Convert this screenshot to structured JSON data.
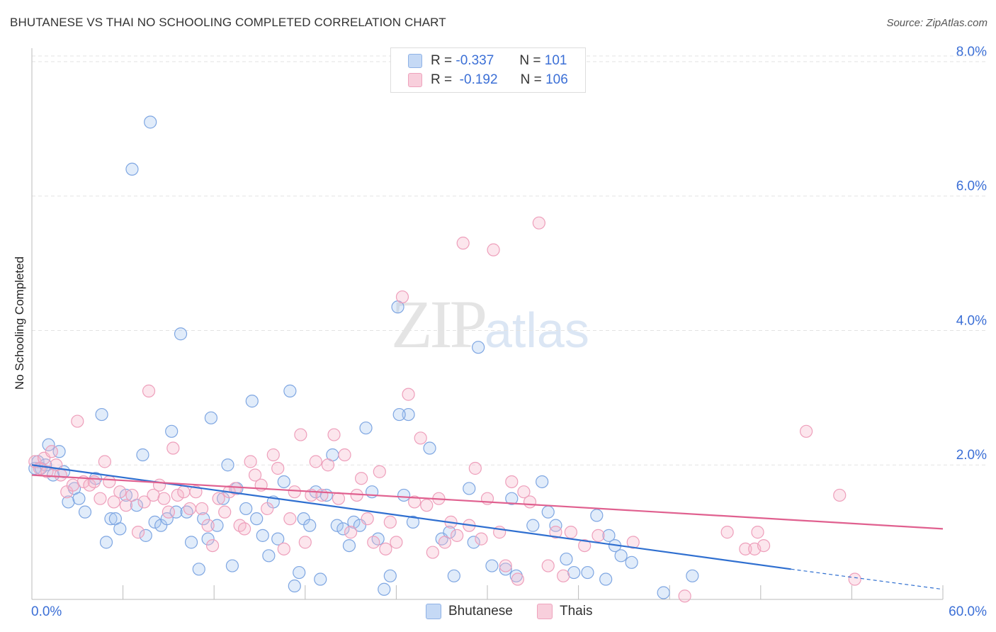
{
  "title": "BHUTANESE VS THAI NO SCHOOLING COMPLETED CORRELATION CHART",
  "source": "Source: ZipAtlas.com",
  "watermark": {
    "zip": "ZIP",
    "atlas": "atlas"
  },
  "legend": {
    "rows": [
      {
        "r_label": "R =",
        "r_value": "-0.337",
        "n_label": "N =",
        "n_value": "101",
        "color": "#aac8f0"
      },
      {
        "r_label": "R =",
        "r_value": "-0.192",
        "n_label": "N =",
        "n_value": "106",
        "color": "#f5b8cc"
      }
    ]
  },
  "bottom_legend": {
    "series1": "Bhutanese",
    "series2": "Thais"
  },
  "chart_data": {
    "type": "scatter",
    "title": "BHUTANESE VS THAI NO SCHOOLING COMPLETED CORRELATION CHART",
    "xlabel": "",
    "ylabel": "No Schooling Completed",
    "xlim": [
      0,
      60
    ],
    "ylim": [
      0,
      8.2
    ],
    "x_tick_labels": [
      "0.0%",
      "60.0%"
    ],
    "y_tick_labels": [
      "2.0%",
      "4.0%",
      "6.0%",
      "8.0%"
    ],
    "y_ticks": [
      2,
      4,
      6,
      8
    ],
    "grid": true,
    "legend_position": "top-center",
    "series": [
      {
        "name": "Bhutanese",
        "color": "#6e9fe0",
        "line_color": "#2f6fd0",
        "trend": {
          "x": [
            0,
            50
          ],
          "y": [
            2.0,
            0.45
          ],
          "dashed_to": [
            60,
            0.15
          ]
        },
        "points": [
          [
            0.2,
            1.95
          ],
          [
            0.4,
            2.05
          ],
          [
            0.6,
            1.95
          ],
          [
            0.9,
            2.0
          ],
          [
            1.1,
            2.3
          ],
          [
            1.4,
            1.85
          ],
          [
            1.8,
            2.2
          ],
          [
            2.1,
            1.9
          ],
          [
            2.4,
            1.45
          ],
          [
            2.8,
            1.65
          ],
          [
            3.1,
            1.5
          ],
          [
            3.5,
            1.3
          ],
          [
            4.2,
            1.8
          ],
          [
            4.6,
            2.75
          ],
          [
            4.9,
            0.85
          ],
          [
            5.2,
            1.2
          ],
          [
            5.5,
            1.2
          ],
          [
            5.8,
            1.05
          ],
          [
            6.2,
            1.55
          ],
          [
            6.6,
            6.4
          ],
          [
            6.9,
            1.4
          ],
          [
            7.3,
            2.15
          ],
          [
            7.5,
            0.95
          ],
          [
            7.8,
            7.1
          ],
          [
            8.1,
            1.15
          ],
          [
            8.5,
            1.1
          ],
          [
            8.9,
            1.2
          ],
          [
            9.2,
            2.5
          ],
          [
            9.5,
            1.3
          ],
          [
            9.8,
            3.95
          ],
          [
            10.2,
            1.3
          ],
          [
            10.5,
            0.85
          ],
          [
            11.0,
            0.45
          ],
          [
            11.3,
            1.2
          ],
          [
            11.6,
            0.9
          ],
          [
            11.8,
            2.7
          ],
          [
            12.2,
            1.1
          ],
          [
            12.6,
            1.5
          ],
          [
            12.9,
            2.0
          ],
          [
            13.2,
            0.5
          ],
          [
            13.5,
            1.65
          ],
          [
            14.1,
            1.35
          ],
          [
            14.5,
            2.95
          ],
          [
            14.8,
            1.2
          ],
          [
            15.2,
            0.95
          ],
          [
            15.6,
            0.65
          ],
          [
            15.9,
            1.45
          ],
          [
            16.2,
            0.9
          ],
          [
            16.6,
            1.75
          ],
          [
            17.0,
            3.1
          ],
          [
            17.3,
            0.2
          ],
          [
            17.6,
            0.4
          ],
          [
            17.9,
            1.2
          ],
          [
            18.3,
            1.1
          ],
          [
            18.7,
            1.6
          ],
          [
            19.0,
            0.3
          ],
          [
            19.4,
            1.55
          ],
          [
            19.8,
            2.15
          ],
          [
            20.1,
            1.1
          ],
          [
            20.5,
            1.05
          ],
          [
            20.9,
            0.8
          ],
          [
            21.2,
            1.15
          ],
          [
            21.6,
            1.1
          ],
          [
            22.0,
            2.55
          ],
          [
            22.4,
            1.6
          ],
          [
            22.8,
            0.9
          ],
          [
            23.2,
            0.15
          ],
          [
            23.6,
            0.35
          ],
          [
            24.1,
            4.35
          ],
          [
            24.5,
            1.55
          ],
          [
            24.8,
            2.75
          ],
          [
            24.2,
            2.75
          ],
          [
            25.1,
            1.15
          ],
          [
            26.2,
            2.25
          ],
          [
            27.0,
            0.9
          ],
          [
            27.5,
            1.0
          ],
          [
            27.8,
            0.35
          ],
          [
            28.8,
            1.65
          ],
          [
            29.1,
            0.85
          ],
          [
            29.4,
            3.75
          ],
          [
            30.3,
            0.5
          ],
          [
            31.2,
            0.45
          ],
          [
            31.6,
            1.5
          ],
          [
            31.9,
            0.35
          ],
          [
            33.0,
            1.1
          ],
          [
            33.6,
            1.75
          ],
          [
            34.0,
            1.3
          ],
          [
            34.5,
            1.1
          ],
          [
            35.2,
            0.6
          ],
          [
            35.7,
            0.4
          ],
          [
            36.6,
            0.4
          ],
          [
            37.2,
            1.25
          ],
          [
            38.0,
            0.95
          ],
          [
            38.4,
            0.8
          ],
          [
            38.8,
            0.65
          ],
          [
            37.8,
            0.3
          ],
          [
            39.5,
            0.55
          ],
          [
            41.6,
            0.1
          ],
          [
            43.5,
            0.35
          ]
        ]
      },
      {
        "name": "Thais",
        "color": "#f09ab5",
        "line_color": "#e0608f",
        "trend": {
          "x": [
            0,
            60
          ],
          "y": [
            1.85,
            1.05
          ]
        },
        "points": [
          [
            0.2,
            2.05
          ],
          [
            0.5,
            1.95
          ],
          [
            0.8,
            2.1
          ],
          [
            1.0,
            1.9
          ],
          [
            1.3,
            2.2
          ],
          [
            1.6,
            2.0
          ],
          [
            1.9,
            1.85
          ],
          [
            2.3,
            1.6
          ],
          [
            2.7,
            1.7
          ],
          [
            3.0,
            2.65
          ],
          [
            3.4,
            1.75
          ],
          [
            3.8,
            1.7
          ],
          [
            4.1,
            1.75
          ],
          [
            4.5,
            1.5
          ],
          [
            4.8,
            2.05
          ],
          [
            5.1,
            1.75
          ],
          [
            5.4,
            1.45
          ],
          [
            5.8,
            1.6
          ],
          [
            6.2,
            1.4
          ],
          [
            6.6,
            1.55
          ],
          [
            7.0,
            1.0
          ],
          [
            7.4,
            1.45
          ],
          [
            7.7,
            3.1
          ],
          [
            8.0,
            1.55
          ],
          [
            8.4,
            1.7
          ],
          [
            8.7,
            1.5
          ],
          [
            9.0,
            1.3
          ],
          [
            9.3,
            2.25
          ],
          [
            9.6,
            1.55
          ],
          [
            10.0,
            1.6
          ],
          [
            10.4,
            1.35
          ],
          [
            10.8,
            1.6
          ],
          [
            11.2,
            1.35
          ],
          [
            11.6,
            1.1
          ],
          [
            11.9,
            0.8
          ],
          [
            12.3,
            1.5
          ],
          [
            12.7,
            1.3
          ],
          [
            13.0,
            1.6
          ],
          [
            13.4,
            1.65
          ],
          [
            13.7,
            1.1
          ],
          [
            14.0,
            1.05
          ],
          [
            14.4,
            2.05
          ],
          [
            14.7,
            1.85
          ],
          [
            15.1,
            1.7
          ],
          [
            15.5,
            1.35
          ],
          [
            15.9,
            2.15
          ],
          [
            16.2,
            1.95
          ],
          [
            16.6,
            0.75
          ],
          [
            17.0,
            1.2
          ],
          [
            17.3,
            1.6
          ],
          [
            17.7,
            2.45
          ],
          [
            18.0,
            0.85
          ],
          [
            18.4,
            1.55
          ],
          [
            18.7,
            2.05
          ],
          [
            19.1,
            1.55
          ],
          [
            19.5,
            2.0
          ],
          [
            19.9,
            2.45
          ],
          [
            20.2,
            1.5
          ],
          [
            20.6,
            2.15
          ],
          [
            21.0,
            1.0
          ],
          [
            21.4,
            1.55
          ],
          [
            21.7,
            1.8
          ],
          [
            22.1,
            1.2
          ],
          [
            22.5,
            0.85
          ],
          [
            22.9,
            1.9
          ],
          [
            23.3,
            0.75
          ],
          [
            23.6,
            1.15
          ],
          [
            24.0,
            0.85
          ],
          [
            24.4,
            4.5
          ],
          [
            24.8,
            3.05
          ],
          [
            25.2,
            1.45
          ],
          [
            25.6,
            2.4
          ],
          [
            26.0,
            1.4
          ],
          [
            26.4,
            0.7
          ],
          [
            26.8,
            1.5
          ],
          [
            27.2,
            0.85
          ],
          [
            27.6,
            1.15
          ],
          [
            28.0,
            0.95
          ],
          [
            28.4,
            5.3
          ],
          [
            28.8,
            1.1
          ],
          [
            29.2,
            1.95
          ],
          [
            29.6,
            0.9
          ],
          [
            30.0,
            1.5
          ],
          [
            30.4,
            5.2
          ],
          [
            30.8,
            1.0
          ],
          [
            31.2,
            0.5
          ],
          [
            31.6,
            1.75
          ],
          [
            32.0,
            0.3
          ],
          [
            32.4,
            1.6
          ],
          [
            32.8,
            1.45
          ],
          [
            33.4,
            5.6
          ],
          [
            34.0,
            0.5
          ],
          [
            34.5,
            1.0
          ],
          [
            35.0,
            0.35
          ],
          [
            35.5,
            1.0
          ],
          [
            36.4,
            0.8
          ],
          [
            37.3,
            0.95
          ],
          [
            39.6,
            0.85
          ],
          [
            45.8,
            1.0
          ],
          [
            47.0,
            0.75
          ],
          [
            47.6,
            0.75
          ],
          [
            47.8,
            1.0
          ],
          [
            48.2,
            0.8
          ],
          [
            51.0,
            2.5
          ],
          [
            53.2,
            1.55
          ],
          [
            54.2,
            0.3
          ],
          [
            43.0,
            0.05
          ]
        ]
      }
    ]
  }
}
